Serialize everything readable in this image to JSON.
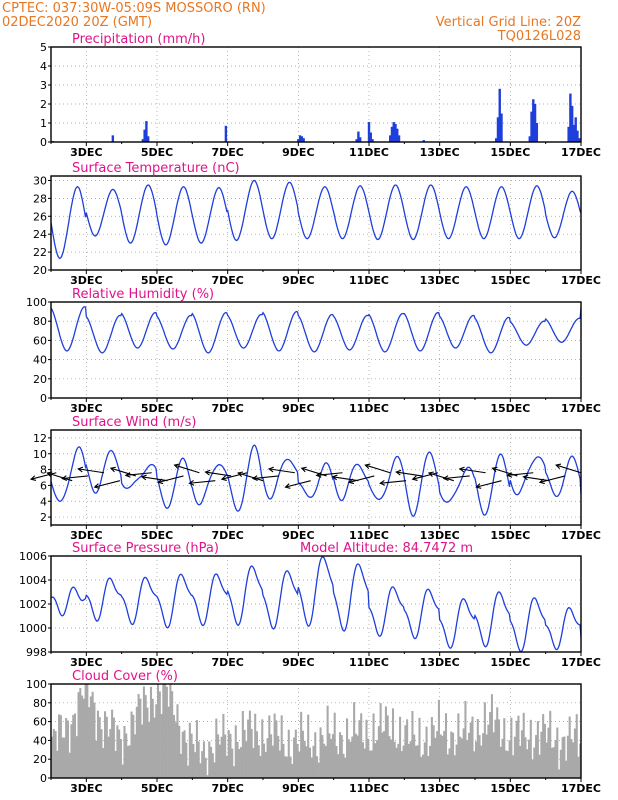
{
  "header": {
    "line1": "CPTEC:   037:30W-05:09S   MOSSORO (RN)",
    "line2": "02DEC2020 20Z (GMT)",
    "grid_note": "Vertical Grid Line: 20Z",
    "code": "TQ0126L028"
  },
  "colors": {
    "header": "#e87722",
    "title": "#e0138a",
    "series": "#1f3fdb",
    "cloud": "#a9a9a9"
  },
  "x_labels": [
    "3DEC",
    "5DEC",
    "7DEC",
    "9DEC",
    "11DEC",
    "13DEC",
    "15DEC",
    "17DEC"
  ],
  "chart_data": [
    {
      "type": "bar",
      "title": "Precipitation (mm/h)",
      "ylim": [
        0,
        5
      ],
      "yticks": [
        "0",
        "1",
        "2",
        "3",
        "4",
        "5"
      ],
      "x_range_days": [
        2.0,
        17.0
      ],
      "grid": "dotted",
      "points": [
        [
          2.05,
          0.05
        ],
        [
          3.75,
          0.35
        ],
        [
          4.6,
          0.15
        ],
        [
          4.65,
          0.65
        ],
        [
          4.7,
          1.1
        ],
        [
          4.75,
          0.3
        ],
        [
          6.95,
          0.85
        ],
        [
          9.0,
          0.15
        ],
        [
          9.05,
          0.35
        ],
        [
          9.1,
          0.3
        ],
        [
          9.15,
          0.2
        ],
        [
          10.65,
          0.15
        ],
        [
          10.7,
          0.55
        ],
        [
          10.75,
          0.25
        ],
        [
          11.0,
          1.05
        ],
        [
          11.05,
          0.5
        ],
        [
          11.1,
          0.15
        ],
        [
          11.6,
          0.35
        ],
        [
          11.65,
          0.8
        ],
        [
          11.7,
          1.05
        ],
        [
          11.75,
          0.95
        ],
        [
          11.8,
          0.7
        ],
        [
          11.85,
          0.35
        ],
        [
          12.55,
          0.1
        ],
        [
          14.6,
          0.2
        ],
        [
          14.65,
          1.3
        ],
        [
          14.7,
          2.8
        ],
        [
          14.75,
          1.5
        ],
        [
          15.55,
          0.3
        ],
        [
          15.6,
          1.6
        ],
        [
          15.65,
          2.25
        ],
        [
          15.7,
          2.0
        ],
        [
          15.75,
          1.0
        ],
        [
          16.65,
          0.8
        ],
        [
          16.7,
          2.55
        ],
        [
          16.75,
          1.9
        ],
        [
          16.8,
          0.9
        ],
        [
          16.85,
          1.3
        ],
        [
          16.9,
          0.6
        ],
        [
          16.95,
          0.2
        ]
      ]
    },
    {
      "type": "line",
      "title": "Surface Temperature (nC)",
      "ylim": [
        20,
        30.5
      ],
      "yticks": [
        "20",
        "22",
        "24",
        "26",
        "28",
        "30"
      ],
      "x_range_days": [
        2.0,
        17.0
      ],
      "grid": "dotted",
      "daily_min": [
        21.3,
        23.8,
        23.0,
        22.8,
        23.0,
        23.3,
        23.5,
        23.5,
        23.5,
        23.4,
        23.4,
        23.5,
        23.5,
        23.5,
        23.6,
        24.1
      ],
      "daily_max": [
        29.3,
        29.0,
        29.5,
        29.3,
        29.2,
        30.0,
        29.8,
        29.3,
        29.4,
        29.5,
        29.5,
        29.3,
        29.3,
        29.4,
        28.8,
        28.6
      ],
      "range_mean": [
        26.8,
        29.2,
        26.3
      ]
    },
    {
      "type": "line",
      "title": "Relative Humidity (%)",
      "ylim": [
        0,
        100
      ],
      "yticks": [
        "0",
        "20",
        "40",
        "60",
        "80",
        "100"
      ],
      "x_range_days": [
        2.0,
        17.0
      ],
      "grid": "dotted",
      "daily_min": [
        49,
        47,
        52,
        51,
        47,
        52,
        49,
        48,
        50,
        48,
        49,
        52,
        47,
        55,
        58,
        60
      ],
      "daily_max": [
        95,
        86,
        89,
        86,
        89,
        87,
        90,
        87,
        86,
        88,
        89,
        86,
        84,
        80,
        83,
        95
      ]
    },
    {
      "type": "line",
      "title": "Surface Wind (m/s)",
      "ylim": [
        1,
        13
      ],
      "yticks": [
        "2",
        "4",
        "6",
        "8",
        "10",
        "12"
      ],
      "x_range_days": [
        2.0,
        17.0
      ],
      "grid": "dotted",
      "daily_min": [
        3.2,
        5.8,
        5.2,
        3.7,
        3.5,
        2.9,
        4.7,
        4.3,
        4.8,
        3.5,
        2.9,
        3.2,
        2.9,
        4.6,
        5.0,
        2.4
      ],
      "daily_max": [
        10.8,
        9.9,
        8.9,
        8.7,
        9.4,
        10.3,
        9.9,
        8.2,
        8.7,
        9.4,
        9.9,
        8.5,
        9.3,
        10.3,
        8.9,
        8.5
      ],
      "wind_vector_days": [
        2.15,
        2.6,
        3.05,
        3.5,
        3.95,
        4.4,
        4.85,
        5.3,
        5.75,
        6.2,
        6.65,
        7.1,
        7.55,
        8.0,
        8.45,
        8.9,
        9.35,
        9.8,
        10.25,
        10.7,
        11.15,
        11.6,
        12.05,
        12.5,
        12.95,
        13.4,
        13.85,
        14.3,
        14.75,
        15.2,
        15.65,
        16.1,
        16.55,
        17.0
      ]
    },
    {
      "type": "line",
      "title": "Surface Pressure (hPa)",
      "annotation": "Model Altitude: 84.7472 m",
      "ylim": [
        998,
        1006
      ],
      "yticks": [
        "998",
        "1000",
        "1002",
        "1004",
        "1006"
      ],
      "x_range_days": [
        2.0,
        17.0
      ],
      "grid": "dotted",
      "daily_min": [
        1001.5,
        1001.0,
        1000.7,
        1000.4,
        1000.6,
        1000.6,
        1000.3,
        1000.5,
        1000.1,
        999.7,
        999.5,
        998.7,
        998.8,
        998.4,
        998.6,
        997.8
      ],
      "daily_max": [
        1003.1,
        1004.0,
        1004.1,
        1004.4,
        1004.4,
        1005.1,
        1004.7,
        1005.9,
        1005.3,
        1003.3,
        1003.1,
        1002.3,
        1002.9,
        1002.4,
        1001.5,
        1000.3
      ]
    },
    {
      "type": "bar",
      "title": "Cloud Cover (%)",
      "ylim": [
        0,
        100
      ],
      "yticks": [
        "0",
        "20",
        "40",
        "60",
        "80",
        "100"
      ],
      "x_range_days": [
        2.0,
        17.0
      ],
      "grid": "dotted",
      "daily_mean": [
        35,
        55,
        95,
        60,
        40,
        65,
        90,
        88,
        35,
        30,
        40,
        45,
        50,
        45,
        38,
        40,
        42,
        45,
        48,
        50,
        55,
        40,
        45,
        50,
        45,
        55,
        60,
        42,
        48,
        45,
        40,
        40
      ]
    }
  ]
}
